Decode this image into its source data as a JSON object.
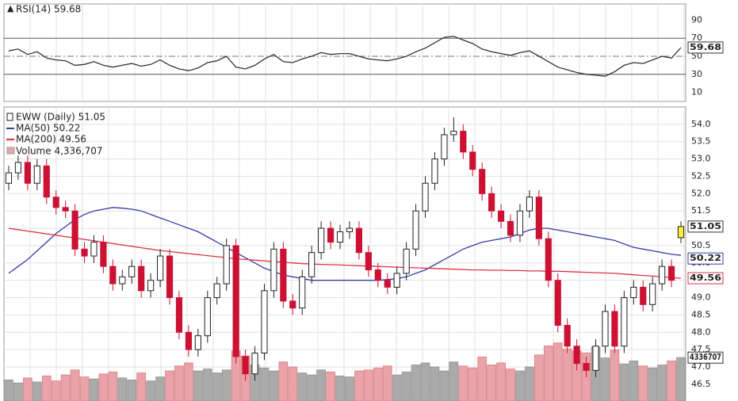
{
  "chart_data": [
    {
      "type": "line",
      "legend": "RSI(14) 59.68",
      "ylim": [
        0,
        100
      ],
      "yticks": [
        10,
        30,
        50,
        70,
        90
      ],
      "levels": [
        {
          "value": 70,
          "style": "solid"
        },
        {
          "value": 50,
          "style": "dashdot"
        },
        {
          "value": 30,
          "style": "solid"
        }
      ],
      "series": [
        {
          "name": "RSI(14)",
          "color": "#333333",
          "values": [
            56,
            58,
            52,
            55,
            48,
            46,
            45,
            40,
            41,
            44,
            40,
            38,
            40,
            42,
            39,
            41,
            46,
            40,
            36,
            34,
            37,
            43,
            45,
            50,
            38,
            36,
            40,
            47,
            52,
            44,
            43,
            47,
            50,
            54,
            52,
            53,
            53,
            50,
            47,
            46,
            45,
            47,
            50,
            55,
            59,
            65,
            71,
            72,
            68,
            64,
            58,
            55,
            53,
            51,
            54,
            56,
            50,
            44,
            38,
            35,
            32,
            30,
            29,
            28,
            33,
            40,
            43,
            42,
            46,
            50,
            48,
            59.68
          ]
        }
      ]
    },
    {
      "type": "candlestick",
      "legend": "EWW (Daily) 51.05",
      "ylim": [
        46.2,
        54.5
      ],
      "yticks": [
        46.5,
        {
          "value": 47,
          "label": "47.0"
        },
        47.5,
        {
          "value": 48,
          "label": "48.0"
        },
        48.5,
        {
          "value": 49,
          "label": "49.0"
        },
        49.5,
        {
          "value": 50,
          "label": "50.0"
        },
        50.5,
        {
          "value": 51,
          "label": "51.0"
        },
        51.5,
        {
          "value": 52,
          "label": "52.0"
        },
        52.5,
        {
          "value": 53,
          "label": "53.0"
        },
        53.5,
        {
          "value": 54,
          "label": "54.0"
        }
      ],
      "up_color": "#ffffff",
      "down_color": "#cc1133",
      "last_candle_color": "#ffee33",
      "open": [
        52.3,
        52.6,
        52.9,
        52.3,
        52.8,
        51.9,
        51.6,
        51.5,
        50.4,
        50.2,
        50.6,
        49.9,
        49.4,
        49.6,
        49.9,
        49.2,
        49.5,
        50.2,
        49.0,
        48.0,
        47.5,
        47.9,
        49.0,
        49.4,
        50.5,
        47.3,
        46.8,
        47.4,
        49.2,
        50.4,
        48.9,
        48.7,
        49.6,
        50.3,
        51.0,
        50.6,
        50.9,
        51.0,
        50.3,
        49.8,
        49.5,
        49.3,
        49.7,
        50.4,
        51.5,
        52.3,
        53.0,
        53.7,
        53.8,
        53.2,
        52.7,
        52.0,
        51.5,
        51.2,
        50.8,
        51.5,
        51.9,
        50.7,
        49.5,
        48.2,
        47.6,
        47.1,
        46.9,
        47.6,
        48.6,
        47.6,
        49.0,
        49.3,
        48.8,
        49.4,
        49.9,
        50.73
      ],
      "high": [
        52.8,
        53.1,
        53.1,
        53.0,
        53.0,
        52.1,
        51.8,
        51.7,
        50.6,
        50.8,
        50.8,
        50.1,
        49.8,
        50.1,
        50.1,
        49.7,
        50.4,
        50.4,
        49.2,
        48.2,
        48.1,
        49.2,
        49.6,
        50.7,
        50.7,
        47.5,
        47.6,
        49.4,
        50.6,
        50.6,
        49.1,
        49.8,
        50.5,
        51.2,
        51.2,
        51.1,
        51.2,
        51.2,
        50.5,
        50.0,
        49.7,
        49.9,
        50.6,
        51.7,
        52.5,
        53.2,
        53.9,
        54.2,
        54.0,
        53.4,
        52.9,
        52.2,
        51.7,
        51.4,
        51.7,
        52.1,
        52.1,
        50.9,
        49.7,
        48.4,
        47.8,
        47.3,
        47.8,
        48.8,
        48.8,
        49.2,
        49.5,
        49.5,
        49.6,
        50.1,
        50.1,
        51.2
      ],
      "low": [
        52.1,
        52.4,
        52.1,
        52.1,
        51.7,
        51.4,
        51.3,
        50.2,
        50.0,
        50.0,
        49.7,
        49.2,
        49.2,
        49.4,
        49.0,
        49.0,
        49.3,
        48.8,
        47.8,
        47.3,
        47.3,
        47.7,
        48.8,
        49.2,
        47.1,
        46.6,
        46.6,
        47.2,
        49.0,
        48.7,
        48.5,
        48.5,
        49.4,
        50.1,
        50.4,
        50.4,
        50.7,
        50.1,
        49.6,
        49.3,
        49.1,
        49.1,
        49.5,
        50.2,
        51.3,
        52.1,
        52.8,
        53.5,
        53.0,
        52.5,
        51.8,
        51.3,
        51.0,
        50.6,
        50.6,
        51.3,
        50.5,
        49.3,
        48.0,
        47.4,
        46.9,
        46.7,
        46.7,
        47.4,
        47.4,
        47.4,
        48.8,
        48.6,
        48.6,
        49.2,
        49.3,
        50.57
      ],
      "close": [
        52.6,
        52.9,
        52.3,
        52.8,
        51.9,
        51.6,
        51.5,
        50.4,
        50.2,
        50.6,
        49.9,
        49.4,
        49.6,
        49.9,
        49.2,
        49.5,
        50.2,
        49.0,
        48.0,
        47.5,
        47.9,
        49.0,
        49.4,
        50.5,
        47.3,
        46.8,
        47.4,
        49.2,
        50.4,
        48.9,
        48.7,
        49.6,
        50.3,
        51.0,
        50.6,
        50.9,
        51.0,
        50.3,
        49.8,
        49.5,
        49.3,
        49.7,
        50.4,
        51.5,
        52.3,
        53.0,
        53.7,
        53.8,
        53.2,
        52.7,
        52.0,
        51.5,
        51.2,
        50.8,
        51.5,
        51.9,
        50.7,
        49.5,
        48.2,
        47.6,
        47.1,
        46.9,
        47.6,
        48.6,
        47.6,
        49.0,
        49.3,
        48.8,
        49.4,
        49.9,
        49.5,
        51.05
      ],
      "series": [
        {
          "name": "MA(50) 50.22",
          "color": "#3a3aa8",
          "values": [
            49.7,
            49.9,
            50.1,
            50.35,
            50.6,
            50.85,
            51.05,
            51.25,
            51.4,
            51.5,
            51.55,
            51.6,
            51.58,
            51.55,
            51.5,
            51.4,
            51.3,
            51.2,
            51.1,
            51.0,
            50.9,
            50.75,
            50.6,
            50.45,
            50.3,
            50.15,
            50.0,
            49.85,
            49.75,
            49.65,
            49.6,
            49.55,
            49.5,
            49.5,
            49.5,
            49.5,
            49.5,
            49.5,
            49.5,
            49.5,
            49.52,
            49.55,
            49.6,
            49.7,
            49.8,
            49.95,
            50.1,
            50.25,
            50.4,
            50.5,
            50.6,
            50.65,
            50.7,
            50.75,
            50.85,
            50.95,
            51.0,
            51.0,
            50.95,
            50.9,
            50.85,
            50.8,
            50.75,
            50.7,
            50.65,
            50.55,
            50.45,
            50.4,
            50.35,
            50.3,
            50.25,
            50.22
          ]
        },
        {
          "name": "MA(200) 49.56",
          "color": "#dd3344",
          "values": [
            51.0,
            50.96,
            50.92,
            50.88,
            50.84,
            50.8,
            50.76,
            50.72,
            50.68,
            50.64,
            50.6,
            50.56,
            50.52,
            50.48,
            50.44,
            50.4,
            50.36,
            50.33,
            50.3,
            50.27,
            50.24,
            50.21,
            50.18,
            50.15,
            50.12,
            50.1,
            50.08,
            50.06,
            50.04,
            50.02,
            50.0,
            49.98,
            49.97,
            49.96,
            49.95,
            49.94,
            49.93,
            49.92,
            49.91,
            49.9,
            49.89,
            49.88,
            49.87,
            49.86,
            49.85,
            49.84,
            49.83,
            49.82,
            49.81,
            49.8,
            49.8,
            49.79,
            49.79,
            49.78,
            49.78,
            49.77,
            49.77,
            49.76,
            49.76,
            49.75,
            49.74,
            49.73,
            49.72,
            49.71,
            49.7,
            49.68,
            49.66,
            49.64,
            49.62,
            49.6,
            49.58,
            49.56
          ]
        }
      ],
      "volume_legend": "Volume 4,336,707",
      "vlim": [
        0,
        8000000
      ],
      "volume_up_color": "#aaaaaa",
      "volume_down_color": "#eaa3ab",
      "volume": [
        2100000,
        1800000,
        2300000,
        1900000,
        2500000,
        2000000,
        2600000,
        3100000,
        2400000,
        2200000,
        2700000,
        2900000,
        2300000,
        2100000,
        2800000,
        2000000,
        2400000,
        3000000,
        3500000,
        3800000,
        3000000,
        3200000,
        2800000,
        3100000,
        5000000,
        4500000,
        3600000,
        3300000,
        3000000,
        3900000,
        3400000,
        2800000,
        2600000,
        3100000,
        2900000,
        2500000,
        2400000,
        3000000,
        3100000,
        3300000,
        3500000,
        2600000,
        2900000,
        3600000,
        3800000,
        3400000,
        3000000,
        3900000,
        3500000,
        3300000,
        4400000,
        3600000,
        3800000,
        3200000,
        3000000,
        3400000,
        4600000,
        5500000,
        5800000,
        5200000,
        5000000,
        4800000,
        5400000,
        4300000,
        5100000,
        3700000,
        4000000,
        3500000,
        3300000,
        3600000,
        4000000,
        4336707
      ]
    }
  ]
}
